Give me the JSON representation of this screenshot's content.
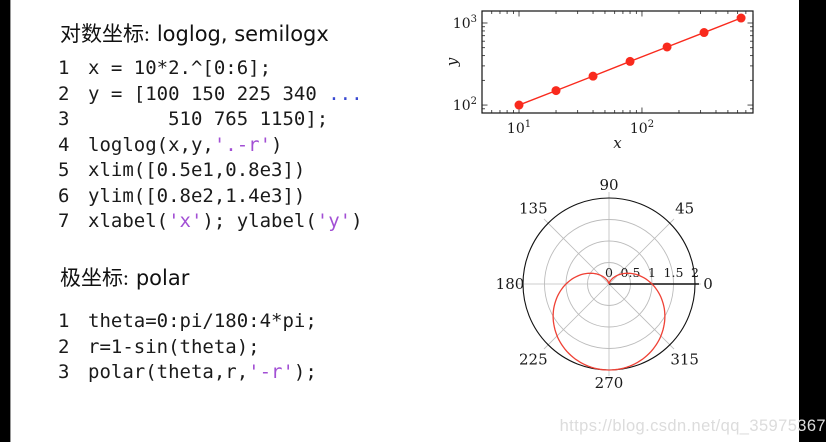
{
  "sections": [
    {
      "title_zh": "对数坐标:",
      "title_en": "loglog, semilogx"
    },
    {
      "title_zh": "极坐标:",
      "title_en": "polar"
    }
  ],
  "code_blocks": [
    {
      "lines": [
        [
          {
            "t": "x = 10*2.^[0:6];",
            "c": "d"
          }
        ],
        [
          {
            "t": "y = [100 150 225 340 ",
            "c": "d"
          },
          {
            "t": "...",
            "c": "b"
          }
        ],
        [
          {
            "t": "       510 765 1150];",
            "c": "d"
          }
        ],
        [
          {
            "t": "loglog(x,y,",
            "c": "d"
          },
          {
            "t": "'.-r'",
            "c": "s"
          },
          {
            "t": ")",
            "c": "d"
          }
        ],
        [
          {
            "t": "xlim([0.5e1,0.8e3])",
            "c": "d"
          }
        ],
        [
          {
            "t": "ylim([0.8e2,1.4e3])",
            "c": "d"
          }
        ],
        [
          {
            "t": "xlabel(",
            "c": "d"
          },
          {
            "t": "'x'",
            "c": "s"
          },
          {
            "t": "); ylabel(",
            "c": "d"
          },
          {
            "t": "'y'",
            "c": "s"
          },
          {
            "t": ")",
            "c": "d"
          }
        ]
      ]
    },
    {
      "lines": [
        [
          {
            "t": "theta=0:pi/180:4*pi;",
            "c": "d"
          }
        ],
        [
          {
            "t": "r=1-sin(theta);",
            "c": "d"
          }
        ],
        [
          {
            "t": "polar(theta,r,",
            "c": "d"
          },
          {
            "t": "'-r'",
            "c": "s"
          },
          {
            "t": ");",
            "c": "d"
          }
        ]
      ]
    }
  ],
  "chart_data": [
    {
      "type": "line",
      "id": "loglog-plot",
      "xscale": "log",
      "yscale": "log",
      "x": [
        10,
        20,
        40,
        80,
        160,
        320,
        640
      ],
      "y": [
        100,
        150,
        225,
        340,
        510,
        765,
        1150
      ],
      "xlim": [
        5,
        800
      ],
      "ylim": [
        80,
        1400
      ],
      "xlabel": "x",
      "ylabel": "y",
      "x_tick_labels": [
        {
          "v": 10,
          "label": "10^1"
        },
        {
          "v": 100,
          "label": "10^2"
        }
      ],
      "y_tick_labels": [
        {
          "v": 100,
          "label": "10^2"
        },
        {
          "v": 1000,
          "label": "10^3"
        }
      ],
      "line_color": "#f92a1d",
      "marker": "dot",
      "grid": false
    },
    {
      "type": "polar",
      "id": "polar-plot",
      "r_expr": "r = 1 - sin(theta)",
      "theta_range_deg": [
        0,
        720
      ],
      "r_max": 2,
      "r_tick_labels": [
        "0",
        "0.5",
        "1",
        "1.5",
        "2"
      ],
      "r_tick_values": [
        0,
        0.5,
        1,
        1.5,
        2
      ],
      "angle_labels": [
        0,
        45,
        90,
        135,
        180,
        225,
        270,
        315
      ],
      "line_color": "#ef4135",
      "grid_color": "#bcbcbc",
      "grid": true
    }
  ],
  "watermark": {
    "text": "https://blog.csdn.net/qq_35975367"
  }
}
